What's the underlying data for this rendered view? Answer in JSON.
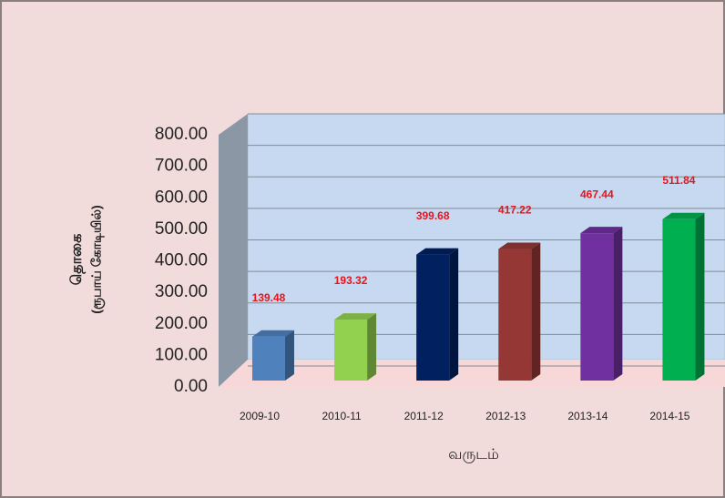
{
  "chart_data": {
    "type": "bar3d",
    "y_label": [
      "தொகை",
      "(ரூபாய் கோடியில்)"
    ],
    "x_label": "வருடம்",
    "categories": [
      "2009-10",
      "2010-11",
      "2011-12",
      "2012-13",
      "2013-14",
      "2014-15"
    ],
    "values": [
      139.48,
      193.32,
      399.68,
      417.22,
      467.44,
      511.84
    ],
    "colors": [
      "#4f81bd",
      "#92d050",
      "#002060",
      "#953735",
      "#7030a0",
      "#00b050"
    ],
    "ylim": [
      0,
      800
    ],
    "yticks": [
      {
        "value": 0,
        "label": "0.00"
      },
      {
        "value": 100,
        "label": "100.00"
      },
      {
        "value": 200,
        "label": "200.00"
      },
      {
        "value": 300,
        "label": "300.00"
      },
      {
        "value": 400,
        "label": "400.00"
      },
      {
        "value": 500,
        "label": "500.00"
      },
      {
        "value": 600,
        "label": "600.00"
      },
      {
        "value": 700,
        "label": "700.00"
      },
      {
        "value": 800,
        "label": "800.00"
      }
    ],
    "grid": true
  }
}
